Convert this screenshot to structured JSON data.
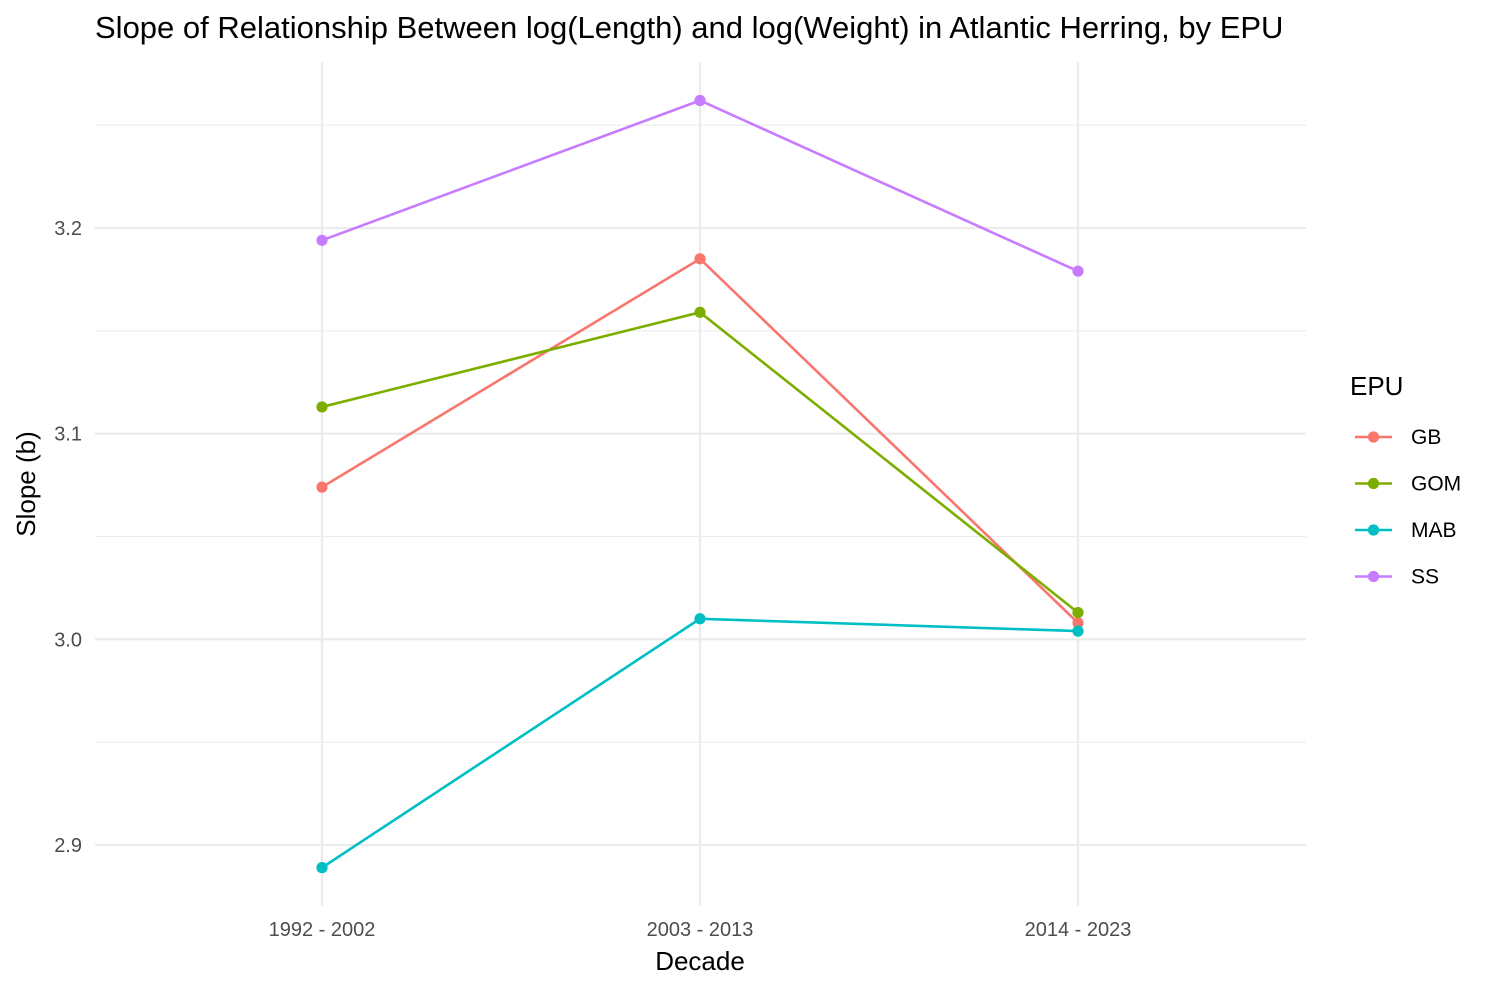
{
  "chart_data": {
    "type": "line",
    "title": "Slope of Relationship Between log(Length) and log(Weight) in Atlantic Herring, by EPU",
    "xlabel": "Decade",
    "ylabel": "Slope (b)",
    "categories": [
      "1992 - 2002",
      "2003 - 2013",
      "2014 - 2023"
    ],
    "ylim": [
      2.875,
      3.28
    ],
    "y_major_ticks": [
      2.9,
      3.0,
      3.1,
      3.2
    ],
    "y_tick_labels": [
      "2.9",
      "3.0",
      "3.1",
      "3.2"
    ],
    "y_minor_ticks": [
      2.95,
      3.05,
      3.15,
      3.25
    ],
    "grid": true,
    "legend": {
      "title": "EPU",
      "position": "right"
    },
    "series": [
      {
        "name": "GB",
        "color": "#F8766D",
        "values": [
          3.074,
          3.185,
          3.008
        ]
      },
      {
        "name": "GOM",
        "color": "#7CAE00",
        "values": [
          3.113,
          3.159,
          3.013
        ]
      },
      {
        "name": "MAB",
        "color": "#00BFC4",
        "values": [
          2.889,
          3.01,
          3.004
        ]
      },
      {
        "name": "SS",
        "color": "#C77CFF",
        "values": [
          3.194,
          3.262,
          3.179
        ]
      }
    ]
  }
}
